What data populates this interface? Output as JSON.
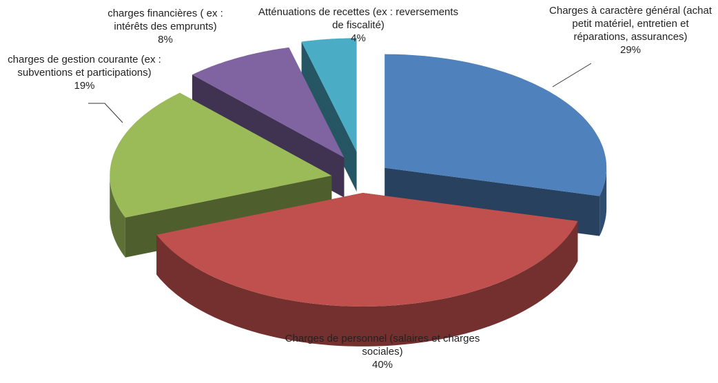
{
  "chart_data": {
    "type": "pie3d",
    "categories": [
      "Charges à caractère général (achat petit matériel, entretien et réparations, assurances)",
      "Charges de personnel (salaires et charges sociales)",
      "charges de gestion courante (ex : subventions et participations)",
      "charges financières ( ex : intérêts des emprunts)",
      "Atténuations de recettes (ex : reversements de fiscalité)"
    ],
    "values": [
      29,
      40,
      19,
      8,
      4
    ],
    "value_labels": [
      "29%",
      "40%",
      "19%",
      "8%",
      "4%"
    ],
    "colors": [
      "#4f81bd",
      "#c0504d",
      "#9bbb59",
      "#8064a2",
      "#4bacc6"
    ]
  }
}
